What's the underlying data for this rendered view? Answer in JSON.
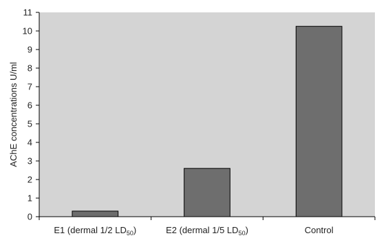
{
  "chart_data": {
    "type": "bar",
    "categories": [
      {
        "main": "E1 (dermal 1/2 LD",
        "sub": "50",
        "tail": ")"
      },
      {
        "main": "E2 (dermal 1/5 LD",
        "sub": "50",
        "tail": ")"
      },
      {
        "main": "Control",
        "sub": "",
        "tail": ""
      }
    ],
    "values": [
      0.3,
      2.6,
      10.25
    ],
    "ylabel": "AChE concentrations U/ml",
    "xlabel": "",
    "ylim": [
      0,
      11
    ],
    "yticks": [
      0,
      1,
      2,
      3,
      4,
      5,
      6,
      7,
      8,
      9,
      10,
      11
    ],
    "grid": false,
    "colors": {
      "plot_background": "#d4d4d4",
      "bar_fill": "#6e6e6e",
      "bar_stroke": "#000000",
      "axis": "#000000"
    }
  }
}
